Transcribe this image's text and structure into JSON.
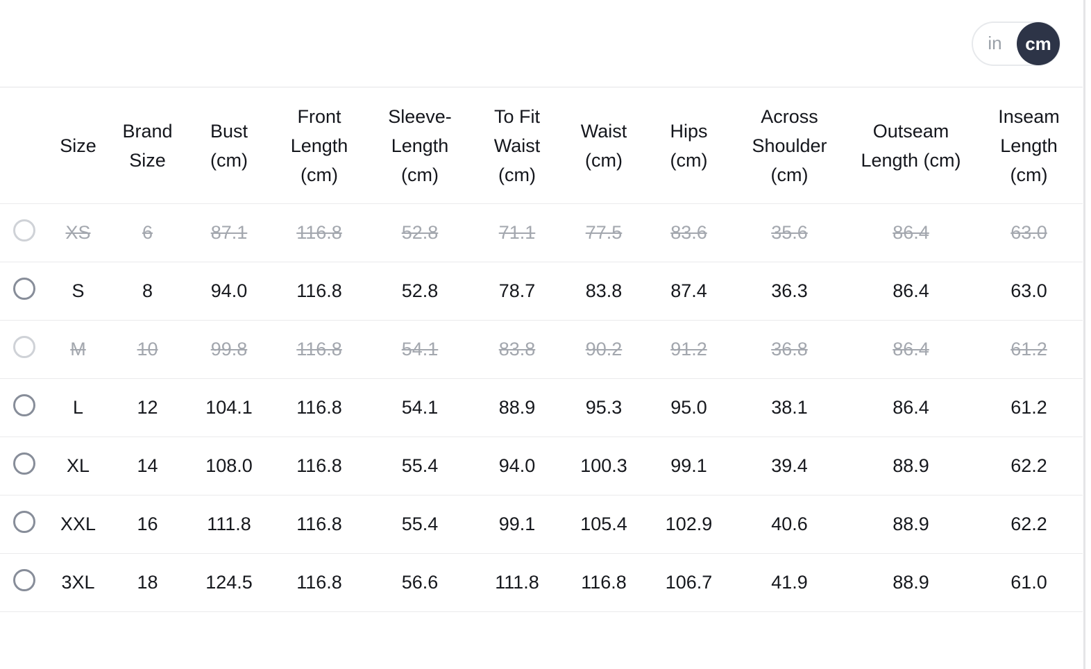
{
  "unit_toggle": {
    "in_label": "in",
    "cm_label": "cm",
    "selected": "cm"
  },
  "table": {
    "columns": [
      "Size",
      "Brand Size",
      "Bust (cm)",
      "Front Length (cm)",
      "Sleeve-Length (cm)",
      "To Fit Waist (cm)",
      "Waist (cm)",
      "Hips (cm)",
      "Across Shoulder (cm)",
      "Outseam Length (cm)",
      "Inseam Length (cm)"
    ],
    "rows": [
      {
        "size": "XS",
        "available": false,
        "selected": false,
        "values": [
          "6",
          "87.1",
          "116.8",
          "52.8",
          "71.1",
          "77.5",
          "83.6",
          "35.6",
          "86.4",
          "63.0"
        ]
      },
      {
        "size": "S",
        "available": true,
        "selected": false,
        "values": [
          "8",
          "94.0",
          "116.8",
          "52.8",
          "78.7",
          "83.8",
          "87.4",
          "36.3",
          "86.4",
          "63.0"
        ]
      },
      {
        "size": "M",
        "available": false,
        "selected": false,
        "values": [
          "10",
          "99.8",
          "116.8",
          "54.1",
          "83.8",
          "90.2",
          "91.2",
          "36.8",
          "86.4",
          "61.2"
        ]
      },
      {
        "size": "L",
        "available": true,
        "selected": false,
        "values": [
          "12",
          "104.1",
          "116.8",
          "54.1",
          "88.9",
          "95.3",
          "95.0",
          "38.1",
          "86.4",
          "61.2"
        ]
      },
      {
        "size": "XL",
        "available": true,
        "selected": false,
        "values": [
          "14",
          "108.0",
          "116.8",
          "55.4",
          "94.0",
          "100.3",
          "99.1",
          "39.4",
          "88.9",
          "62.2"
        ]
      },
      {
        "size": "XXL",
        "available": true,
        "selected": false,
        "values": [
          "16",
          "111.8",
          "116.8",
          "55.4",
          "99.1",
          "105.4",
          "102.9",
          "40.6",
          "88.9",
          "62.2"
        ]
      },
      {
        "size": "3XL",
        "available": true,
        "selected": false,
        "values": [
          "18",
          "124.5",
          "116.8",
          "56.6",
          "111.8",
          "116.8",
          "106.7",
          "41.9",
          "88.9",
          "61.0"
        ]
      }
    ]
  },
  "colors": {
    "toggle_active_bg": "#2d3447",
    "toggle_active_text": "#ffffff",
    "toggle_inactive_text": "#9aa0a8",
    "text": "#16181d",
    "disabled_text": "#a3a7ae",
    "row_border": "#eaeaec",
    "radio_border": "#878d99",
    "radio_border_disabled": "#cfd2d7"
  }
}
